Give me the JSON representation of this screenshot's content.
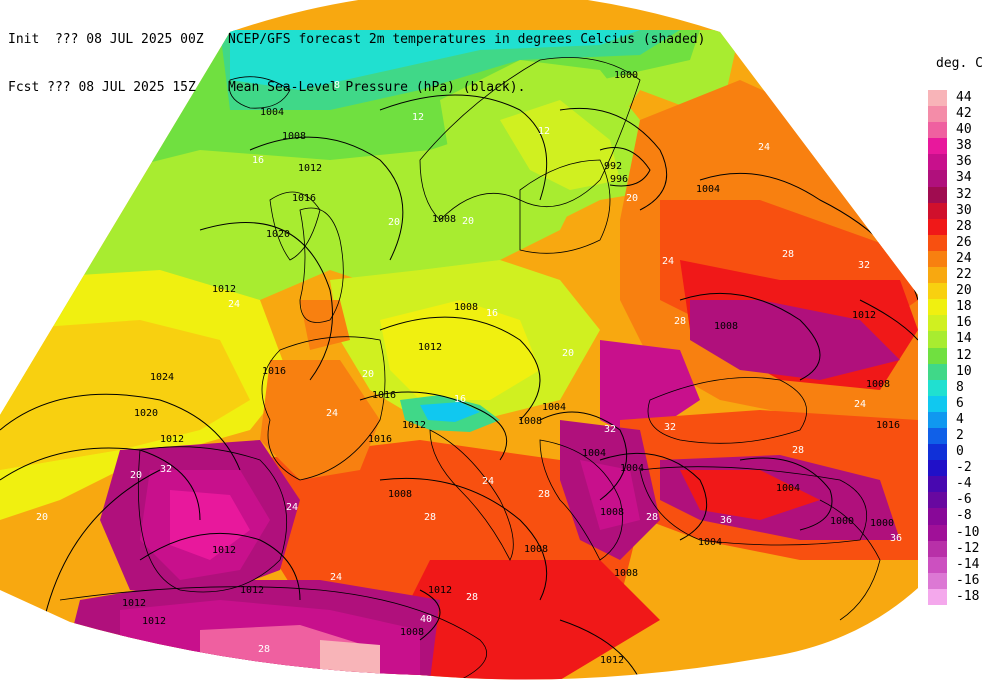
{
  "header": {
    "line1_left": "Init  ??? 08 JUL 2025 00Z",
    "line1_right": "NCEP/GFS forecast 2m temperatures in degrees Celcius (shaded)",
    "line2_left": "Fcst ??? 08 JUL 2025 15Z",
    "line2_right": "Mean Sea-Level Pressure (hPa) (black)."
  },
  "legend": {
    "title": "deg. C",
    "items": [
      {
        "label": "44",
        "color": "#f8b4b8"
      },
      {
        "label": "42",
        "color": "#f48ca8"
      },
      {
        "label": "40",
        "color": "#ef60a0"
      },
      {
        "label": "38",
        "color": "#e8189c"
      },
      {
        "label": "36",
        "color": "#c8108c"
      },
      {
        "label": "34",
        "color": "#b0107c"
      },
      {
        "label": "32",
        "color": "#a00c50"
      },
      {
        "label": "30",
        "color": "#d0102c"
      },
      {
        "label": "28",
        "color": "#f01818"
      },
      {
        "label": "26",
        "color": "#f85010"
      },
      {
        "label": "24",
        "color": "#f88010"
      },
      {
        "label": "22",
        "color": "#f8a810"
      },
      {
        "label": "20",
        "color": "#f8d010"
      },
      {
        "label": "18",
        "color": "#f0f010"
      },
      {
        "label": "16",
        "color": "#d0f020"
      },
      {
        "label": "14",
        "color": "#a8ec30"
      },
      {
        "label": "12",
        "color": "#70e040"
      },
      {
        "label": "10",
        "color": "#40d888"
      },
      {
        "label": "8",
        "color": "#20e0d0"
      },
      {
        "label": "6",
        "color": "#10c8f0"
      },
      {
        "label": "4",
        "color": "#1098f0"
      },
      {
        "label": "2",
        "color": "#1060e8"
      },
      {
        "label": "0",
        "color": "#1030d8"
      },
      {
        "label": "-2",
        "color": "#2010c8"
      },
      {
        "label": "-4",
        "color": "#4808b0"
      },
      {
        "label": "-6",
        "color": "#6808a0"
      },
      {
        "label": "-8",
        "color": "#880898"
      },
      {
        "label": "-10",
        "color": "#a01098"
      },
      {
        "label": "-12",
        "color": "#b830a8"
      },
      {
        "label": "-14",
        "color": "#cc50c0"
      },
      {
        "label": "-16",
        "color": "#dc78d4"
      },
      {
        "label": "-18",
        "color": "#f4a8ec"
      }
    ]
  },
  "isobar_labels": [
    "1000",
    "1004",
    "1008",
    "1012",
    "1016",
    "1020",
    "1024",
    "992",
    "996",
    "1004",
    "1008",
    "1012",
    "1016",
    "1012",
    "1008",
    "1004",
    "1008",
    "1012",
    "1016",
    "1020",
    "1024",
    "1016",
    "1012",
    "1008",
    "1004",
    "1000",
    "1008",
    "1012",
    "1012",
    "1012",
    "1008",
    "1004",
    "1008",
    "1012",
    "1016",
    "1012",
    "1008",
    "1012",
    "1004",
    "1008",
    "1012",
    "1000",
    "1004",
    "1008"
  ],
  "temp_labels": [
    "8",
    "12",
    "12",
    "16",
    "20",
    "20",
    "16",
    "24",
    "28",
    "32",
    "24",
    "20",
    "16",
    "20",
    "24",
    "28",
    "24",
    "20",
    "28",
    "32",
    "36",
    "28",
    "24",
    "28",
    "32",
    "28",
    "24",
    "20",
    "28",
    "24",
    "32",
    "36",
    "40",
    "28",
    "24",
    "20"
  ]
}
